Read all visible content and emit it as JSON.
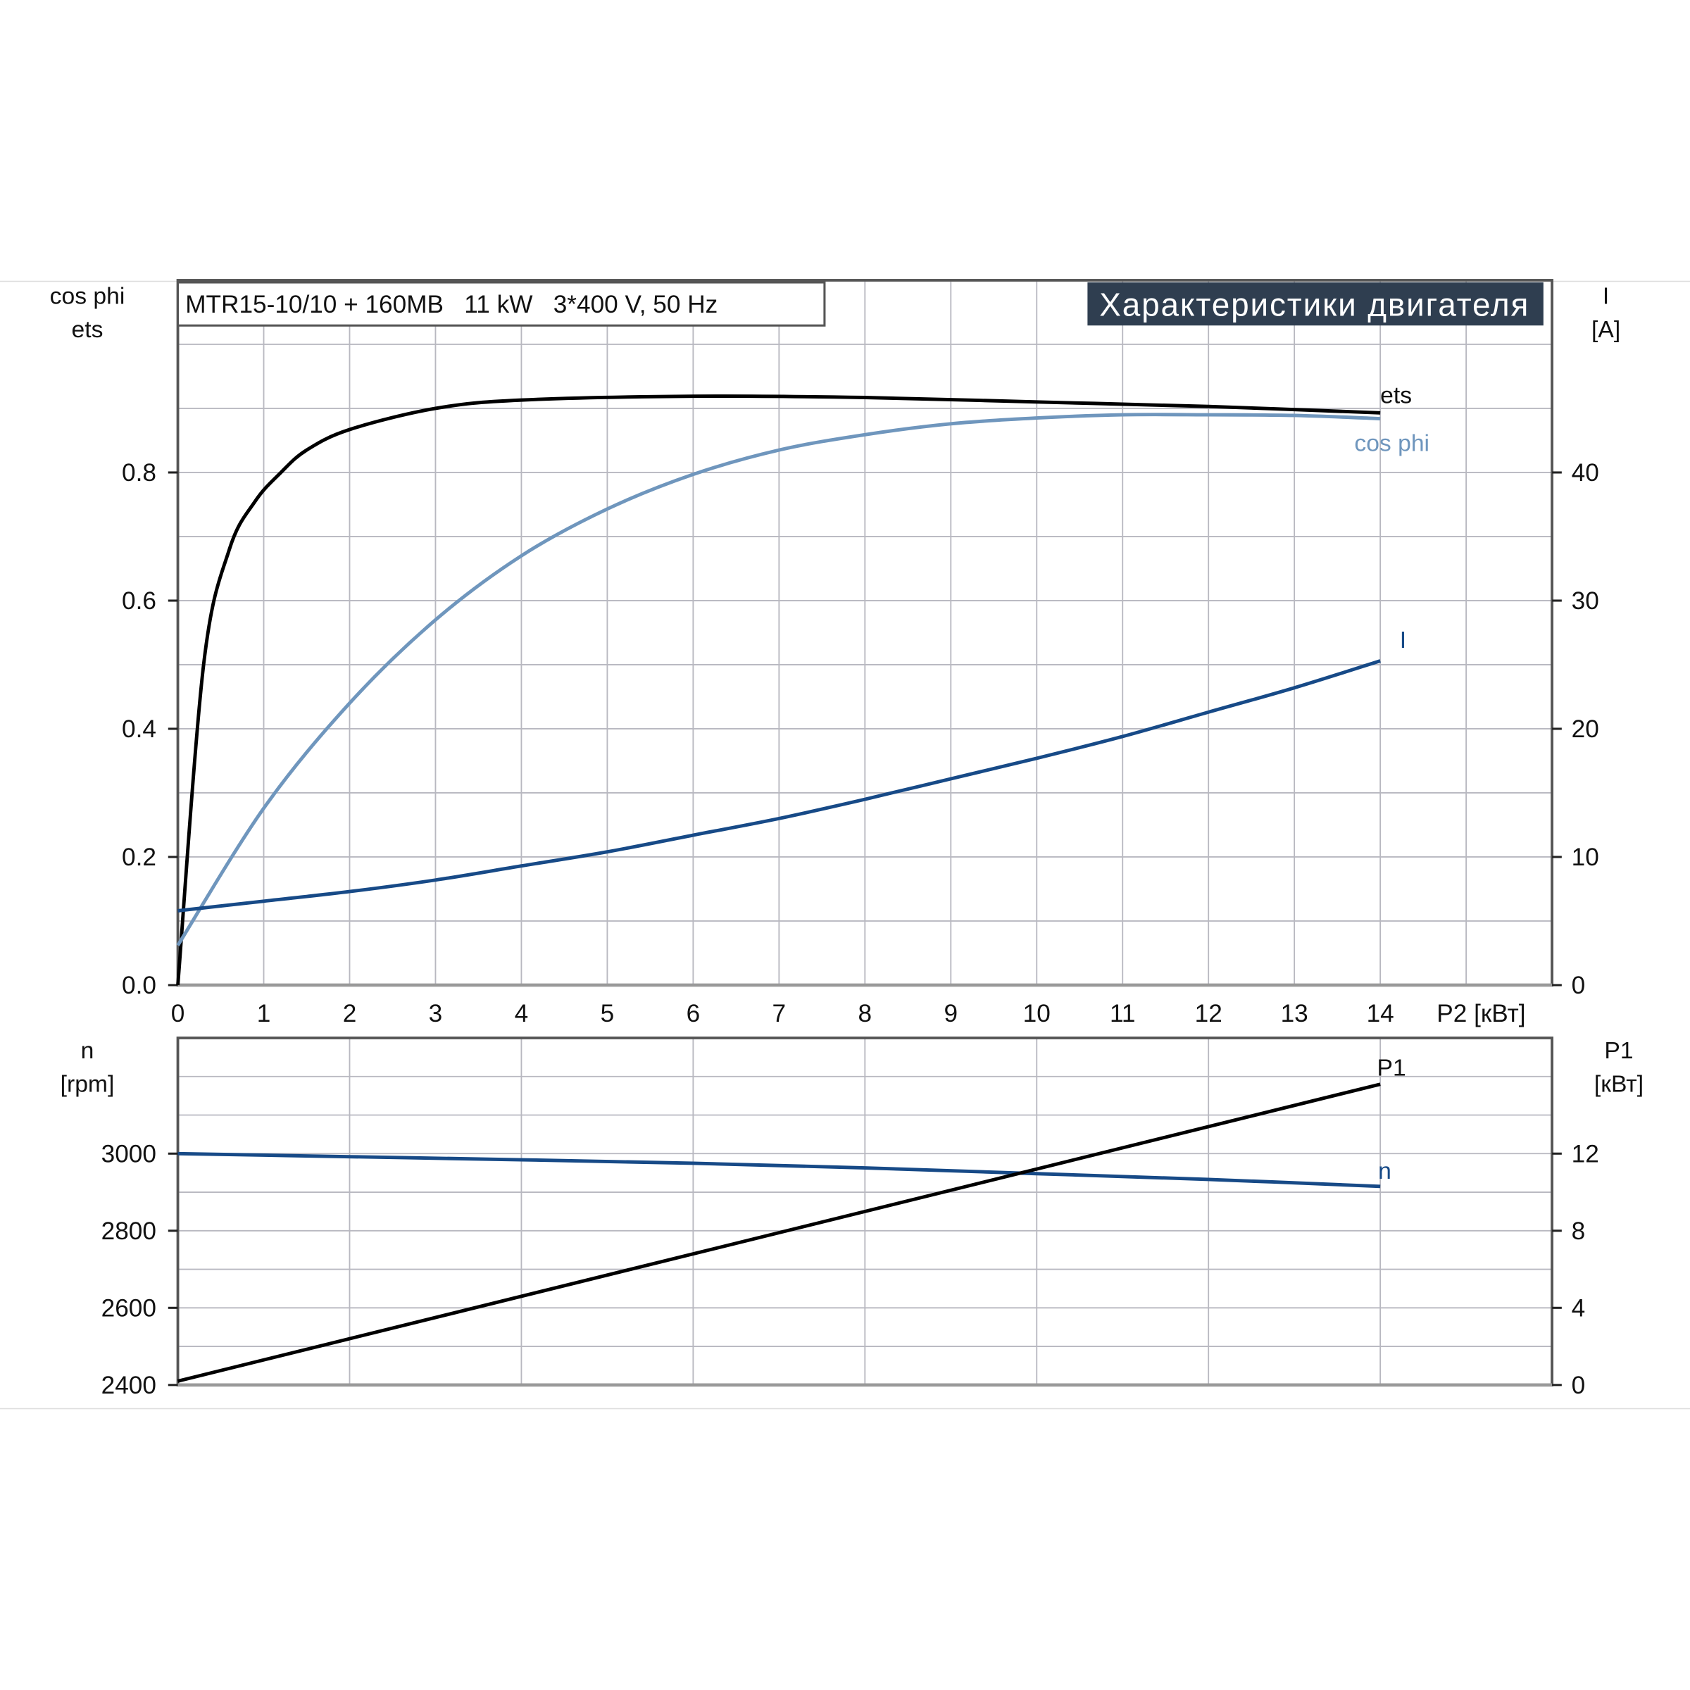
{
  "chart_data": [
    {
      "type": "line",
      "title": "Характеристики двигателя",
      "subtitle": "MTR15-10/10 + 160MB   11 kW   3*400 V, 50 Hz",
      "xlabel": "P2 [кВт]",
      "ylabel_left": [
        "cos phi",
        "ets"
      ],
      "ylabel_right": [
        "I",
        "[A]"
      ],
      "xlim": [
        0,
        16
      ],
      "ylim_left": [
        0,
        1.1
      ],
      "ylim_right": [
        0,
        55
      ],
      "x_ticks": [
        "0",
        "1",
        "2",
        "3",
        "4",
        "5",
        "6",
        "7",
        "8",
        "9",
        "10",
        "11",
        "12",
        "13",
        "14"
      ],
      "y_ticks_left": [
        "0.0",
        "0.2",
        "0.4",
        "0.6",
        "0.8"
      ],
      "y_ticks_right": [
        "0",
        "10",
        "20",
        "30",
        "40"
      ],
      "grid": true,
      "series": [
        {
          "name": "ets",
          "axis": "left",
          "color": "#000000",
          "x": [
            0,
            0.3,
            0.6,
            0.9,
            1.2,
            1.5,
            2,
            3,
            4,
            6,
            8,
            10,
            12,
            14
          ],
          "y": [
            0,
            0.5,
            0.68,
            0.755,
            0.8,
            0.835,
            0.867,
            0.9,
            0.913,
            0.919,
            0.917,
            0.91,
            0.903,
            0.893
          ]
        },
        {
          "name": "cos phi",
          "axis": "left",
          "color": "#6f96bd",
          "x": [
            0,
            1,
            2,
            3,
            4,
            5,
            6,
            7,
            8,
            9,
            10,
            11,
            12,
            13,
            14
          ],
          "y": [
            0.062,
            0.276,
            0.44,
            0.57,
            0.67,
            0.743,
            0.797,
            0.835,
            0.859,
            0.876,
            0.885,
            0.89,
            0.89,
            0.889,
            0.884
          ]
        },
        {
          "name": "I",
          "axis": "right",
          "color": "#174a87",
          "x": [
            0,
            1,
            2,
            3,
            4,
            5,
            6,
            7,
            8,
            9,
            10,
            11,
            12,
            13,
            14
          ],
          "y": [
            5.8,
            6.55,
            7.3,
            8.2,
            9.3,
            10.4,
            11.7,
            13.0,
            14.5,
            16.1,
            17.7,
            19.4,
            21.3,
            23.2,
            25.3
          ]
        }
      ]
    },
    {
      "type": "line",
      "ylabel_left": [
        "n",
        "[rpm]"
      ],
      "ylabel_right": [
        "P1",
        "[кВт]"
      ],
      "xlim": [
        0,
        16
      ],
      "ylim_left": [
        2400,
        3300
      ],
      "ylim_right": [
        0,
        18
      ],
      "y_ticks_left": [
        "2400",
        "2600",
        "2800",
        "3000"
      ],
      "y_ticks_right": [
        "0",
        "4",
        "8",
        "12"
      ],
      "grid": true,
      "series": [
        {
          "name": "n",
          "axis": "left",
          "color": "#174a87",
          "x": [
            0,
            2,
            4,
            6,
            8,
            10,
            12,
            14
          ],
          "y": [
            3000,
            2992,
            2984,
            2975,
            2963,
            2948,
            2933,
            2915
          ]
        },
        {
          "name": "P1",
          "axis": "right",
          "color": "#000000",
          "x": [
            0,
            14
          ],
          "y": [
            0.2,
            15.6
          ]
        }
      ]
    }
  ]
}
